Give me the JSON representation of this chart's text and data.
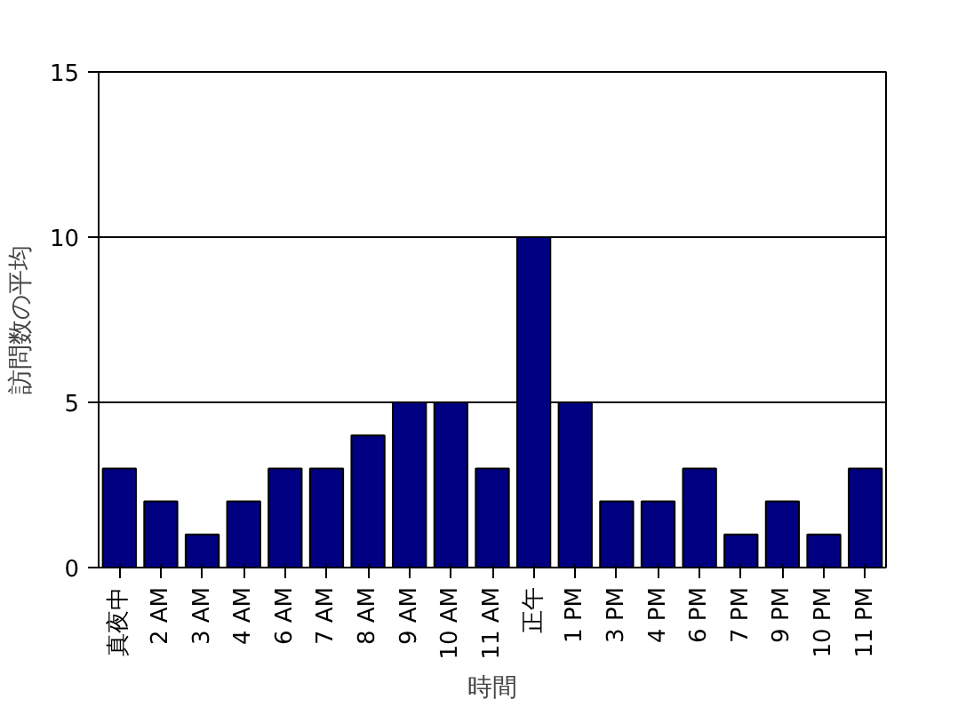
{
  "chart_data": {
    "type": "bar",
    "xlabel": "時間",
    "ylabel": "訪問数の平均",
    "categories": [
      "真夜中",
      "2 AM",
      "3 AM",
      "4 AM",
      "6 AM",
      "7 AM",
      "8 AM",
      "9 AM",
      "10 AM",
      "11 AM",
      "正午",
      "1 PM",
      "3 PM",
      "4 PM",
      "6 PM",
      "7 PM",
      "9 PM",
      "10 PM",
      "11 PM"
    ],
    "values": [
      3,
      2,
      1,
      2,
      3,
      3,
      4,
      5,
      5,
      3,
      10,
      5,
      2,
      2,
      3,
      1,
      2,
      1,
      3
    ],
    "color": "#000080",
    "ylim": [
      0,
      15
    ],
    "yticks": [
      0,
      5,
      10,
      15
    ],
    "grid": "y"
  }
}
